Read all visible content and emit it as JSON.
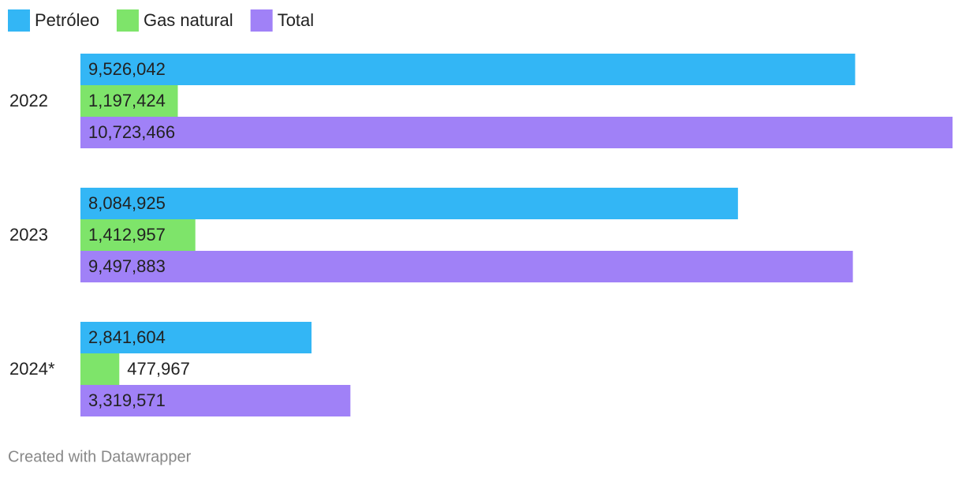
{
  "chart_data": {
    "type": "bar",
    "orientation": "horizontal",
    "categories": [
      "2022",
      "2023",
      "2024*"
    ],
    "series": [
      {
        "name": "Petróleo",
        "color": "#33b6f5",
        "label_color": "#ffffff",
        "values": [
          9526042,
          8084925,
          2841604
        ],
        "value_labels": [
          "9,526,042",
          "8,084,925",
          "2,841,604"
        ]
      },
      {
        "name": "Gas natural",
        "color": "#7ee46a",
        "label_color": "#222222",
        "values": [
          1197424,
          1412957,
          477967
        ],
        "value_labels": [
          "1,197,424",
          "1,412,957",
          "477,967"
        ]
      },
      {
        "name": "Total",
        "color": "#a081f7",
        "label_color": "#ffffff",
        "values": [
          10723466,
          9497883,
          3319571
        ],
        "value_labels": [
          "10,723,466",
          "9,497,883",
          "3,319,571"
        ]
      }
    ],
    "legend": "top-left",
    "footer": "Created with Datawrapper"
  }
}
